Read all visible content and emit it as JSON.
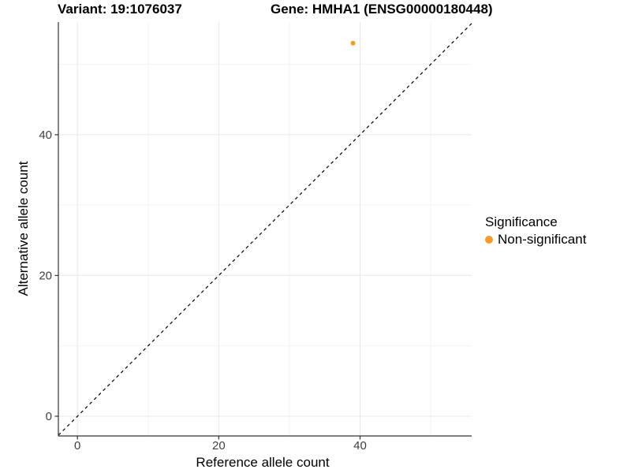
{
  "chart_data": {
    "type": "scatter",
    "title_left": "Variant: 19:1076037",
    "title_right": "Gene: HMHA1 (ENSG00000180448)",
    "xlabel": "Reference allele count",
    "ylabel": "Alternative allele count",
    "xlim": [
      -2.7,
      55.8
    ],
    "ylim": [
      -2.8,
      56.0
    ],
    "x_ticks": [
      0,
      20,
      40
    ],
    "y_ticks": [
      0,
      20,
      40
    ],
    "x_minor_ticks": [
      10,
      30,
      50
    ],
    "y_minor_ticks": [
      10,
      30,
      50
    ],
    "grid": true,
    "points": [
      {
        "x": 39,
        "y": 53,
        "series": "Non-significant"
      }
    ],
    "reference_line": {
      "slope": 1,
      "intercept": 0,
      "style": "dashed",
      "color": "#000000"
    },
    "legend": {
      "title": "Significance",
      "position": "right",
      "items": [
        {
          "label": "Non-significant",
          "color": "#F89B29"
        }
      ]
    },
    "colors": {
      "point": "#F89B29",
      "grid_major": "#E7E7E7",
      "grid_minor": "#F3F3F3",
      "axis": "#333333",
      "tick_label": "#404040"
    }
  }
}
